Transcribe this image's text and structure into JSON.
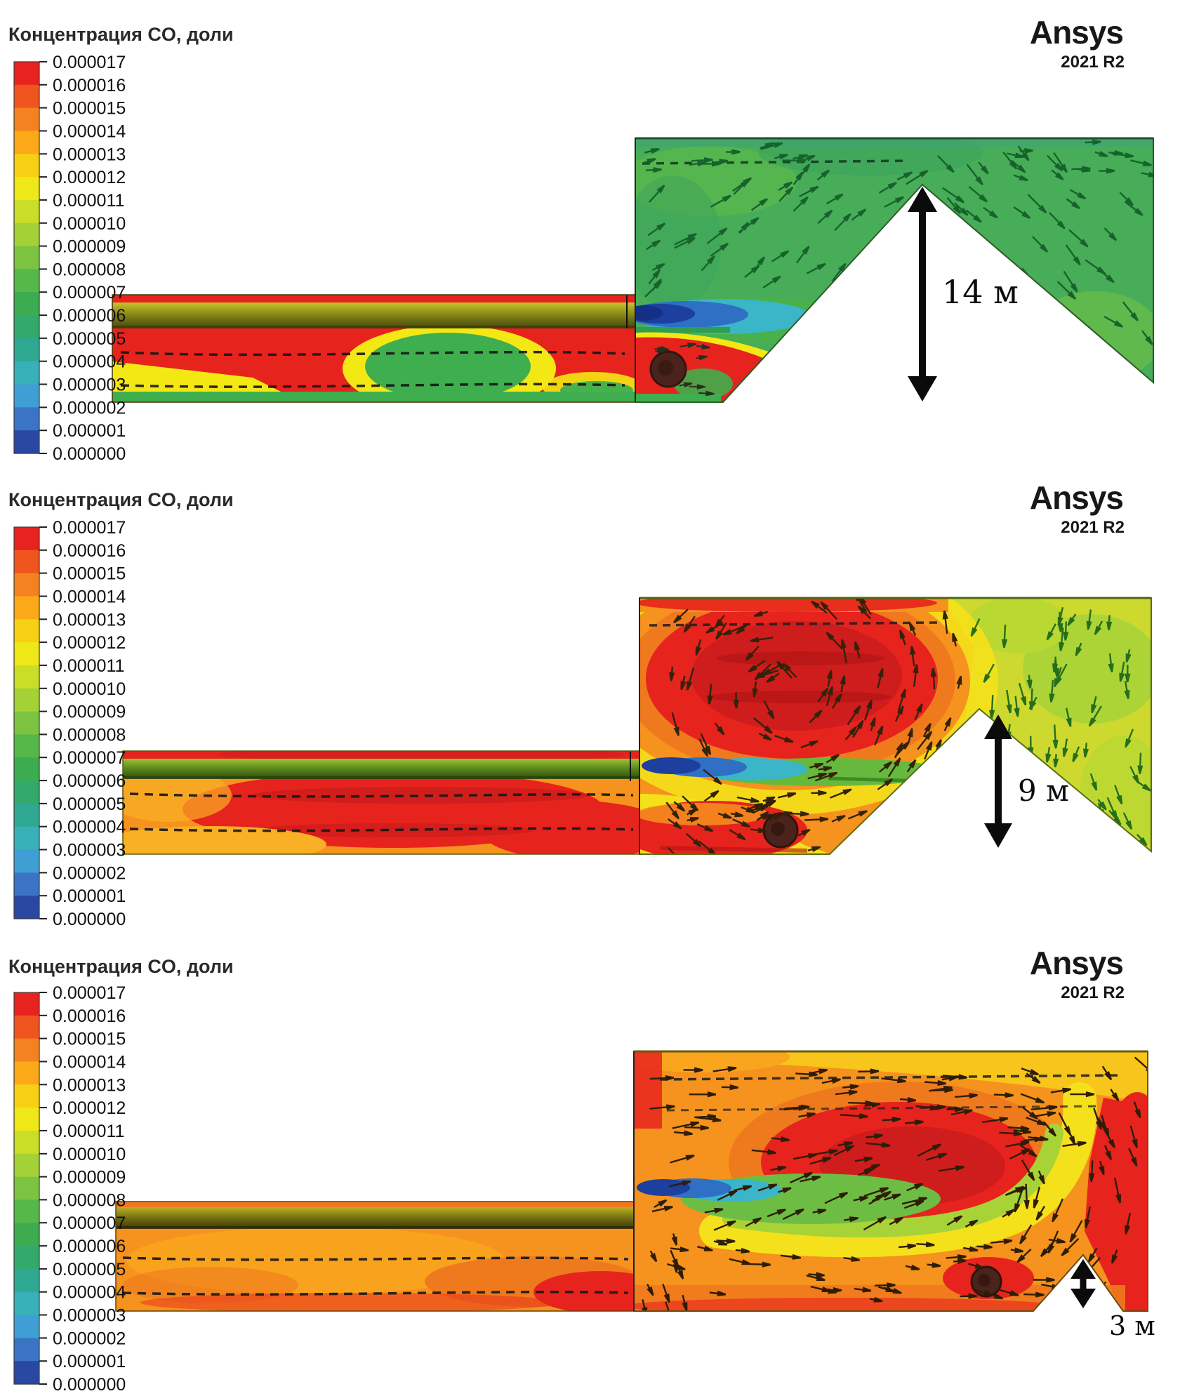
{
  "legend": {
    "title": "Концентрация CO, доли",
    "ticks": [
      "0.000017",
      "0.000016",
      "0.000015",
      "0.000014",
      "0.000013",
      "0.000012",
      "0.000011",
      "0.000010",
      "0.000009",
      "0.000008",
      "0.000007",
      "0.000006",
      "0.000005",
      "0.000004",
      "0.000003",
      "0.000002",
      "0.000001",
      "0.000000"
    ],
    "stops": [
      "#e8231f",
      "#f0541f",
      "#f58220",
      "#fba919",
      "#f7d013",
      "#eee818",
      "#cade28",
      "#a4d236",
      "#7cc342",
      "#55b848",
      "#3dac51",
      "#33a96b",
      "#2fa892",
      "#37b1b7",
      "#3f9fd4",
      "#3a74c2",
      "#2a48a1"
    ]
  },
  "logo": {
    "brand": "Ansys",
    "version": "2021 R2"
  },
  "panels": [
    {
      "annotation": "14 м"
    },
    {
      "annotation": "9 м"
    },
    {
      "annotation": "3 м"
    }
  ],
  "chart_data": [
    {
      "type": "heatmap",
      "title": "Концентрация CO, доли",
      "software": "Ansys 2021 R2",
      "colorbar": {
        "min": 0.0,
        "max": 1.7e-05,
        "step": 1e-06,
        "units": "доли",
        "orientation": "vertical",
        "palette": "rainbow red-to-blue"
      },
      "portal_barrier": {
        "label": "14 м",
        "meters": 14
      },
      "scene": "Tunnel duct (red, ~1.6e-5) discharges past a 14 m slope; portal chamber mostly green (~8e-6 to 1e-5); exhaust jet core blue (<2e-6); vehicle wake red blob near portal floor"
    },
    {
      "type": "heatmap",
      "title": "Концентрация CO, доли",
      "software": "Ansys 2021 R2",
      "colorbar": {
        "min": 0.0,
        "max": 1.7e-05,
        "step": 1e-06,
        "units": "доли",
        "orientation": "vertical",
        "palette": "rainbow red-to-blue"
      },
      "portal_barrier": {
        "label": "9 м",
        "meters": 9
      },
      "scene": "9 m slope: large red recirculation (~1.7e-5) fills upper portal chamber, right side yellow-green (~1.2e-5), blue jet core at duct exit, vehicle in red wake at floor"
    },
    {
      "type": "heatmap",
      "title": "Концентрация CO, доли",
      "software": "Ansys 2021 R2",
      "colorbar": {
        "min": 0.0,
        "max": 1.7e-05,
        "step": 1e-06,
        "units": "доли",
        "orientation": "vertical",
        "palette": "rainbow red-to-blue"
      },
      "portal_barrier": {
        "label": "3 м",
        "meters": 3
      },
      "scene": "3 m slope: chamber saturated orange/red (~1.5e-5 to 1.7e-5); yellow-green jet band curls in a large clockwise vortex; red zone along right wall"
    }
  ]
}
